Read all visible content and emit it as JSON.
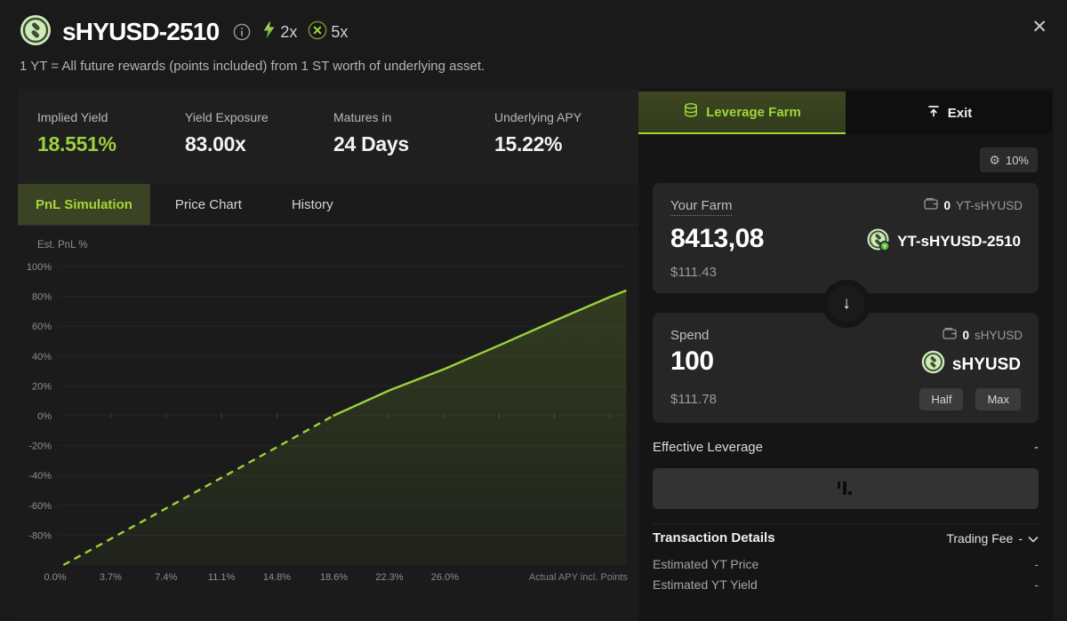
{
  "header": {
    "title": "sHYUSD-2510",
    "subtitle": "1 YT = All future rewards (points included) from 1 ST worth of underlying asset.",
    "badges": [
      {
        "icon": "lightning-icon",
        "label": "2x"
      },
      {
        "icon": "x-circle-icon",
        "label": "5x"
      }
    ],
    "close": "✕"
  },
  "stats": [
    {
      "label": "Implied Yield",
      "value": "18.551%"
    },
    {
      "label": "Yield Exposure",
      "value": "83.00x"
    },
    {
      "label": "Matures in",
      "value": "24 Days"
    },
    {
      "label": "Underlying APY",
      "value": "15.22%"
    }
  ],
  "tabs": [
    {
      "label": "PnL Simulation"
    },
    {
      "label": "Price Chart"
    },
    {
      "label": "History"
    }
  ],
  "chart_data": {
    "type": "line",
    "title": "Est. PnL %",
    "xlabel": "Actual APY incl. Points",
    "ylabel": "Est. PnL %",
    "x_ticks": [
      "0.0%",
      "3.7%",
      "7.4%",
      "11.1%",
      "14.8%",
      "18.6%",
      "22.3%",
      "26.0%"
    ],
    "y_ticks": [
      "100%",
      "80%",
      "60%",
      "40%",
      "20%",
      "0%",
      "-20%",
      "-40%",
      "-60%",
      "-80%"
    ],
    "xlim": [
      0,
      38.1
    ],
    "ylim": [
      -100,
      100
    ],
    "breakeven_x": 18.551,
    "grid": true,
    "series": [
      {
        "name": "Est. PnL %",
        "style": "dashed below zero, solid above zero, green area fill",
        "points": [
          [
            0.55,
            -100
          ],
          [
            3.7,
            -82.5
          ],
          [
            7.4,
            -62
          ],
          [
            11.1,
            -41.5
          ],
          [
            14.8,
            -21
          ],
          [
            18.551,
            0
          ],
          [
            22.3,
            17
          ],
          [
            26.0,
            31.5
          ],
          [
            29.7,
            47.5
          ],
          [
            33.4,
            64
          ],
          [
            37.1,
            80
          ],
          [
            38.1,
            84
          ]
        ]
      }
    ]
  },
  "panel": {
    "tabs": [
      {
        "label": "Leverage Farm",
        "icon": "coins-icon"
      },
      {
        "label": "Exit",
        "icon": "withdraw-icon"
      }
    ],
    "slippage": "10%",
    "gear": "⚙",
    "arrow_down": "↓",
    "farm": {
      "label": "Your Farm",
      "wallet_balance": "0",
      "wallet_token": "YT-sHYUSD",
      "amount": "8413,08",
      "token": "YT-sHYUSD-2510",
      "usd": "$111.43"
    },
    "spend": {
      "label": "Spend",
      "wallet_balance": "0",
      "wallet_token": "sHYUSD",
      "amount": "100",
      "token": "sHYUSD",
      "usd": "$111.78",
      "half": "Half",
      "max": "Max"
    },
    "effective_leverage": {
      "label": "Effective Leverage",
      "value": "-"
    },
    "details": {
      "title": "Transaction Details",
      "trading_fee_label": "Trading Fee",
      "trading_fee_value": "-",
      "rows": [
        {
          "label": "Estimated YT Price",
          "value": "-"
        },
        {
          "label": "Estimated YT Yield",
          "value": "-"
        }
      ]
    }
  },
  "colors": {
    "accent": "#9bd13a",
    "accent_tab_bg": "#3a4323",
    "stat_highlight": "#9bd13a",
    "page_bg": "#1a1a1a",
    "panel_bg": "#151515",
    "card_bg": "#262626",
    "chart_bg": "#1b1b1b"
  }
}
